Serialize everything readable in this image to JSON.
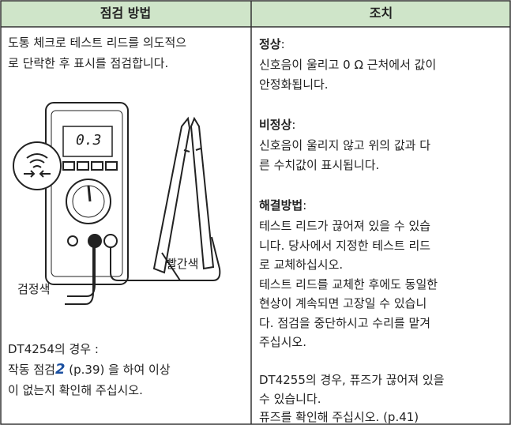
{
  "table": {
    "headers": [
      "점검 방법",
      "조치"
    ],
    "left": {
      "lines": [
        "도통 체크로 테스트 리드를 의도적으",
        "로 단락한 후 표시를 점검합니다."
      ],
      "display": "0.3",
      "red_label": "빨간색",
      "black_label": "검정색",
      "note_title": "DT4254의 경우 :",
      "note_line1": [
        "작동 점검",
        "2",
        " (p.39) 을 하여 이상"
      ],
      "note_line2": "이 없는지 확인해 주십시오."
    },
    "right": {
      "sections": [
        {
          "heading": "정상",
          "lines": [
            "신호음이 울리고 0 Ω 근처에서 값이",
            "안정화됩니다."
          ]
        },
        {
          "heading": "비정상",
          "lines": [
            "신호음이 울리지 않고 위의 값과 다",
            "른 수치값이 표시됩니다."
          ]
        },
        {
          "heading": "해결방법",
          "lines": [
            "테스트 리드가 끊어져 있을 수 있습",
            "니다. 당사에서 지정한 테스트 리드",
            "로 교체하십시오.",
            "테스트 리드를 교체한 후에도 동일한",
            "현상이 계속되면 고장일 수 있습니",
            "다. 점검을 중단하시고 수리를 맡겨",
            "주십시오."
          ]
        }
      ],
      "final_lines": [
        "DT4255의 경우, 퓨즈가 끊어져 있을",
        "수 있습니다.",
        "퓨즈를 확인해 주십시오. (p.41)"
      ]
    }
  }
}
